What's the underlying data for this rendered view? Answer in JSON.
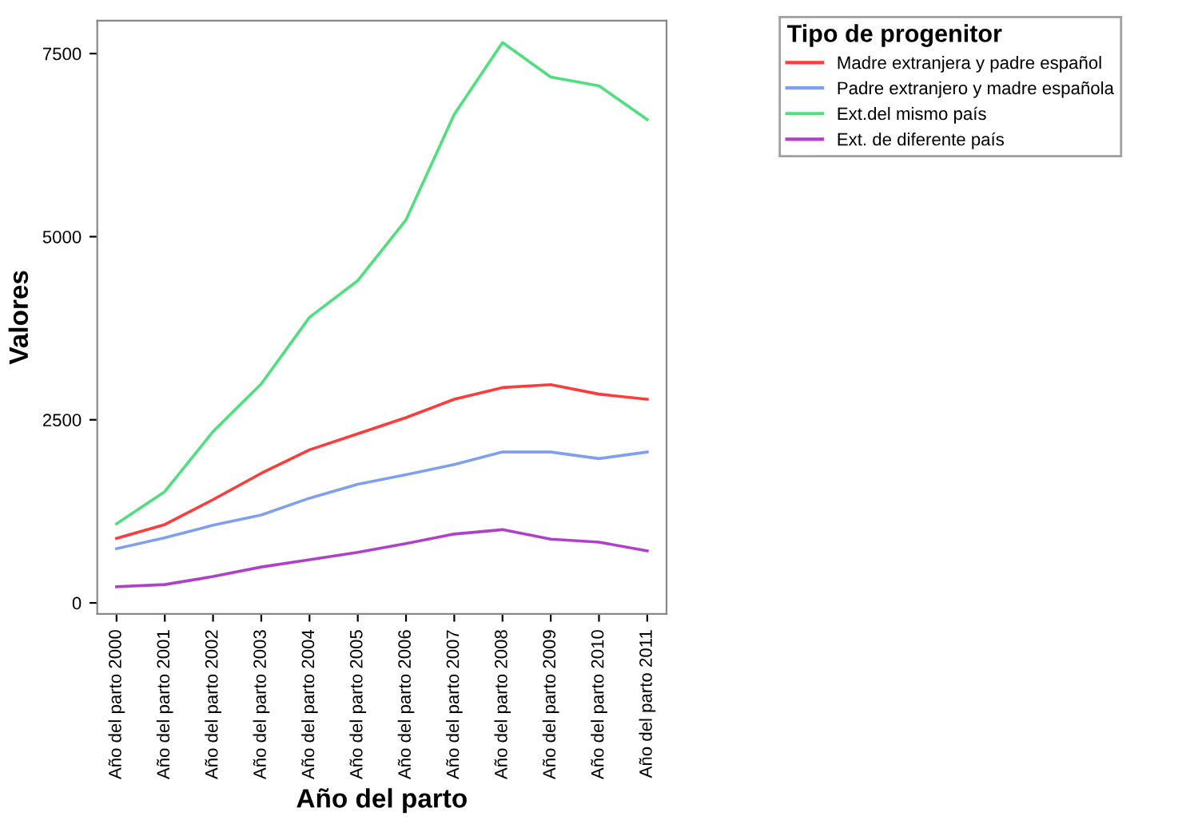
{
  "chart_data": {
    "type": "line",
    "xlabel": "Año del parto",
    "ylabel": "Valores",
    "legend_title": "Tipo de progenitor",
    "legend": "right",
    "categories": [
      "Año del parto 2000",
      "Año del parto 2001",
      "Año del parto 2002",
      "Año del parto 2003",
      "Año del parto 2004",
      "Año del parto 2005",
      "Año del parto 2006",
      "Año del parto 2007",
      "Año del parto 2008",
      "Año del parto 2009",
      "Año del parto 2010",
      "Año del parto 2011"
    ],
    "ylim": [
      -150,
      7950
    ],
    "yticks": [
      0,
      2500,
      5000,
      7500
    ],
    "grid": false,
    "series": [
      {
        "name": "Madre extranjera y padre español",
        "color": "#ff3b3b",
        "values": [
          880,
          1070,
          1410,
          1770,
          2090,
          2310,
          2530,
          2780,
          2940,
          2980,
          2850,
          2780
        ]
      },
      {
        "name": "Padre extranjero y madre española",
        "color": "#7f9fef",
        "values": [
          740,
          890,
          1060,
          1200,
          1430,
          1620,
          1750,
          1890,
          2060,
          2060,
          1970,
          2060
        ]
      },
      {
        "name": "Ext.del mismo país",
        "color": "#4fdf7f",
        "values": [
          1080,
          1520,
          2340,
          2990,
          3900,
          4400,
          5230,
          6670,
          7650,
          7180,
          7060,
          6600
        ]
      },
      {
        "name": "Ext. de diferente país",
        "color": "#b040c8",
        "values": [
          220,
          250,
          360,
          490,
          590,
          690,
          810,
          940,
          1000,
          870,
          830,
          710
        ]
      }
    ]
  }
}
